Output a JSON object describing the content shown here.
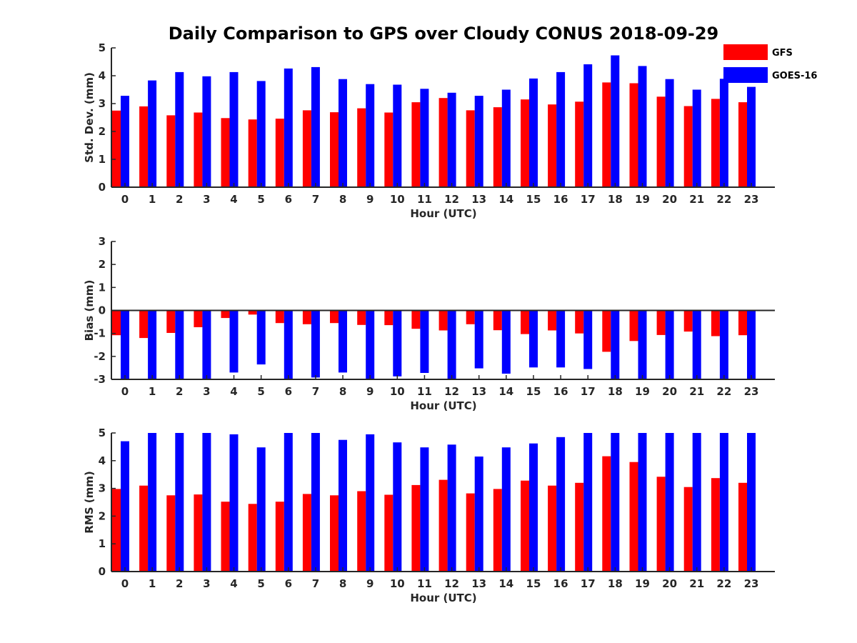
{
  "figure": {
    "title": "Daily Comparison to GPS over Cloudy CONUS 2018-09-29",
    "legend_position": "top-right",
    "colors": {
      "GFS": "#ff0000",
      "GOES-16": "#0000ff",
      "axis": "#262626"
    }
  },
  "chart_data": [
    {
      "type": "bar",
      "title": "Daily Comparison to GPS over Cloudy CONUS 2018-09-29",
      "xlabel": "Hour (UTC)",
      "ylabel": "Std. Dev. (mm)",
      "ylim": [
        0,
        5
      ],
      "yticks": [
        "0",
        "1",
        "2",
        "3",
        "4",
        "5"
      ],
      "categories": [
        "0",
        "1",
        "2",
        "3",
        "4",
        "5",
        "6",
        "7",
        "8",
        "9",
        "10",
        "11",
        "12",
        "13",
        "14",
        "15",
        "16",
        "17",
        "18",
        "19",
        "20",
        "21",
        "22",
        "23"
      ],
      "series": [
        {
          "name": "GFS",
          "color": "#ff0000",
          "values": [
            2.75,
            2.9,
            2.58,
            2.68,
            2.48,
            2.43,
            2.46,
            2.76,
            2.69,
            2.83,
            2.68,
            3.05,
            3.2,
            2.76,
            2.87,
            3.15,
            2.97,
            3.07,
            3.76,
            3.73,
            3.25,
            2.91,
            3.17,
            3.05
          ]
        },
        {
          "name": "GOES-16",
          "color": "#0000ff",
          "values": [
            3.28,
            3.83,
            4.13,
            3.98,
            4.13,
            3.81,
            4.26,
            4.31,
            3.88,
            3.7,
            3.68,
            3.53,
            3.39,
            3.28,
            3.5,
            3.9,
            4.13,
            4.41,
            4.73,
            4.35,
            3.88,
            3.5,
            3.89,
            3.6
          ]
        }
      ],
      "legend": [
        "GFS",
        "GOES-16"
      ]
    },
    {
      "type": "bar",
      "xlabel": "Hour (UTC)",
      "ylabel": "Bias (mm)",
      "ylim": [
        -3,
        3
      ],
      "yticks": [
        "-3",
        "-2",
        "-1",
        "0",
        "1",
        "2",
        "3"
      ],
      "categories": [
        "0",
        "1",
        "2",
        "3",
        "4",
        "5",
        "6",
        "7",
        "8",
        "9",
        "10",
        "11",
        "12",
        "13",
        "14",
        "15",
        "16",
        "17",
        "18",
        "19",
        "20",
        "21",
        "22",
        "23"
      ],
      "series": [
        {
          "name": "GFS",
          "color": "#ff0000",
          "values": [
            -1.08,
            -1.2,
            -0.98,
            -0.73,
            -0.33,
            -0.18,
            -0.55,
            -0.6,
            -0.55,
            -0.63,
            -0.64,
            -0.8,
            -0.87,
            -0.6,
            -0.86,
            -1.03,
            -0.87,
            -1.0,
            -1.8,
            -1.33,
            -1.07,
            -0.92,
            -1.12,
            -1.08
          ]
        },
        {
          "name": "GOES-16",
          "color": "#0000ff",
          "values": [
            -3.0,
            -3.0,
            -3.0,
            -3.0,
            -2.7,
            -2.35,
            -3.0,
            -2.92,
            -2.7,
            -3.0,
            -2.87,
            -2.72,
            -3.0,
            -2.52,
            -2.75,
            -2.48,
            -2.48,
            -2.55,
            -3.0,
            -3.0,
            -3.0,
            -3.0,
            -3.0,
            -3.0
          ]
        }
      ]
    },
    {
      "type": "bar",
      "xlabel": "Hour (UTC)",
      "ylabel": "RMS (mm)",
      "ylim": [
        0,
        5
      ],
      "yticks": [
        "0",
        "1",
        "2",
        "3",
        "4",
        "5"
      ],
      "categories": [
        "0",
        "1",
        "2",
        "3",
        "4",
        "5",
        "6",
        "7",
        "8",
        "9",
        "10",
        "11",
        "12",
        "13",
        "14",
        "15",
        "16",
        "17",
        "18",
        "19",
        "20",
        "21",
        "22",
        "23"
      ],
      "series": [
        {
          "name": "GFS",
          "color": "#ff0000",
          "values": [
            2.98,
            3.1,
            2.75,
            2.78,
            2.52,
            2.44,
            2.52,
            2.8,
            2.75,
            2.9,
            2.77,
            3.12,
            3.31,
            2.82,
            2.98,
            3.28,
            3.1,
            3.2,
            4.16,
            3.95,
            3.42,
            3.05,
            3.37,
            3.2
          ]
        },
        {
          "name": "GOES-16",
          "color": "#0000ff",
          "values": [
            4.7,
            5.0,
            5.0,
            5.0,
            4.95,
            4.48,
            5.0,
            5.0,
            4.75,
            4.95,
            4.66,
            4.48,
            4.58,
            4.15,
            4.48,
            4.62,
            4.85,
            5.0,
            5.0,
            5.0,
            5.0,
            5.0,
            5.0,
            5.0
          ]
        }
      ]
    }
  ]
}
